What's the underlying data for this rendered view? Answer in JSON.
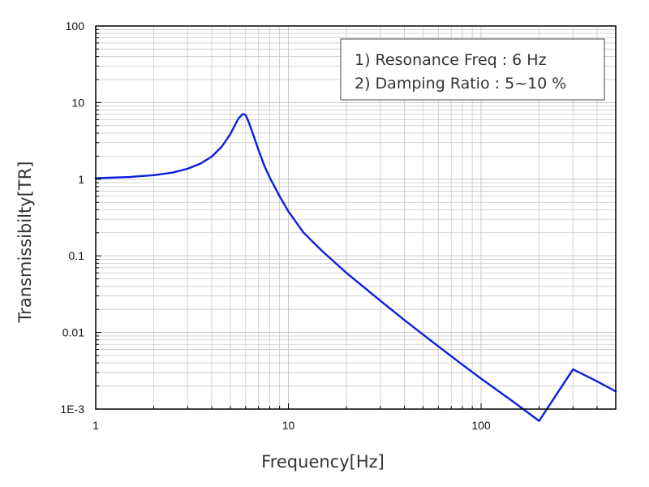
{
  "chart_data": {
    "type": "line",
    "title": "",
    "xlabel": "Frequency[Hz]",
    "ylabel": "Transmissibilty[TR]",
    "xscale": "log",
    "yscale": "log",
    "xlim": [
      1,
      500
    ],
    "ylim": [
      0.001,
      100
    ],
    "grid": true,
    "x_ticks": [
      {
        "value": 1,
        "label": "1"
      },
      {
        "value": 10,
        "label": "10"
      },
      {
        "value": 100,
        "label": "100"
      }
    ],
    "y_ticks": [
      {
        "value": 100,
        "label": "100"
      },
      {
        "value": 10,
        "label": "10"
      },
      {
        "value": 1,
        "label": "1"
      },
      {
        "value": 0.1,
        "label": "0.1"
      },
      {
        "value": 0.01,
        "label": "0.01"
      },
      {
        "value": 0.001,
        "label": "1E-3"
      }
    ],
    "annotation": {
      "lines": [
        "1) Resonance Freq : 6 Hz",
        "2) Damping Ratio : 5~10 %"
      ],
      "placement": "top-right"
    },
    "series": [
      {
        "color": "#0a1fe0",
        "x": [
          1,
          1.5,
          2,
          2.5,
          3,
          3.5,
          4,
          4.5,
          5,
          5.5,
          5.8,
          6,
          6.2,
          6.5,
          7,
          7.5,
          8,
          9,
          10,
          12,
          15,
          20,
          30,
          40,
          60,
          80,
          100,
          150,
          200,
          300,
          400,
          500
        ],
        "y": [
          1.03,
          1.07,
          1.13,
          1.22,
          1.37,
          1.6,
          1.97,
          2.64,
          3.9,
          6.2,
          7.1,
          6.9,
          5.7,
          4.1,
          2.4,
          1.5,
          1.05,
          0.6,
          0.38,
          0.2,
          0.115,
          0.06,
          0.026,
          0.0145,
          0.0066,
          0.0038,
          0.0025,
          0.0012,
          0.0007,
          0.0033,
          0.0023,
          0.0017
        ]
      }
    ]
  }
}
